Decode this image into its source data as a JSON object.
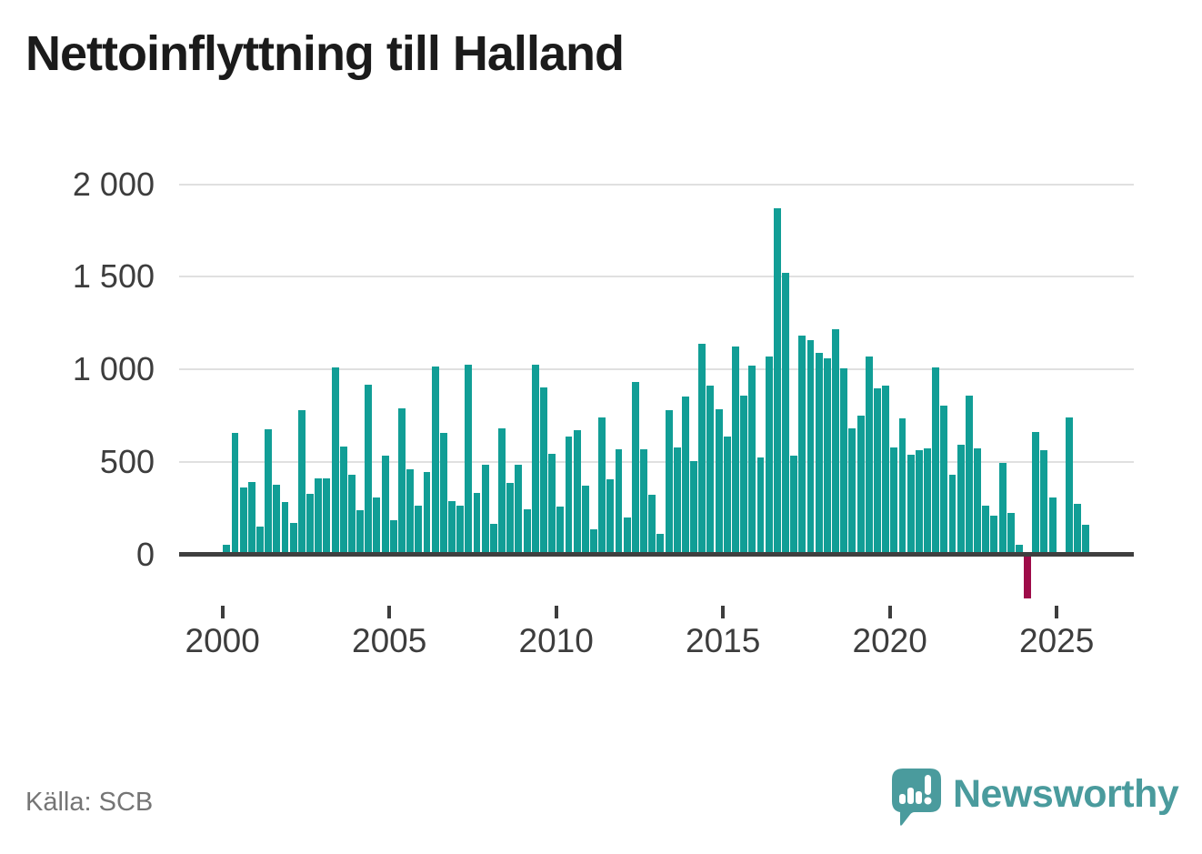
{
  "title": "Nettoinflyttning till Halland",
  "source": "Källa: SCB",
  "brand": {
    "name": "Newsworthy"
  },
  "colors": {
    "bar_positive": "#119e96",
    "bar_negative": "#9e0c49",
    "brand_teal": "#4a9b9d",
    "axis_text": "#3d3d3d",
    "gridline": "#e0e0e0",
    "zero_line": "#3f3f3f"
  },
  "chart_data": {
    "type": "bar",
    "title": "Nettoinflyttning till Halland",
    "x_unit": "quarter",
    "x_range": [
      "2000Q1",
      "2025Q4"
    ],
    "grid": "horizontal",
    "legend": "none",
    "ylim": [
      -280,
      2050
    ],
    "yticks": {
      "values": [
        0,
        500,
        1000,
        1500,
        2000
      ],
      "labels": [
        "0",
        "500",
        "1 000",
        "1 500",
        "2 000"
      ]
    },
    "xticks": {
      "values": [
        2000,
        2005,
        2010,
        2015,
        2020,
        2025
      ],
      "labels": [
        "2000",
        "2005",
        "2010",
        "2015",
        "2020",
        "2025"
      ]
    },
    "series": [
      {
        "year": 2000,
        "values": [
          50,
          655,
          360,
          390
        ]
      },
      {
        "year": 2001,
        "values": [
          148,
          678,
          375,
          285
        ]
      },
      {
        "year": 2002,
        "values": [
          168,
          780,
          325,
          410
        ]
      },
      {
        "year": 2003,
        "values": [
          412,
          1012,
          580,
          432
        ]
      },
      {
        "year": 2004,
        "values": [
          240,
          915,
          308,
          533
        ]
      },
      {
        "year": 2005,
        "values": [
          185,
          788,
          460,
          263
        ]
      },
      {
        "year": 2006,
        "values": [
          443,
          1013,
          655,
          286
        ]
      },
      {
        "year": 2007,
        "values": [
          263,
          1025,
          333,
          486
        ]
      },
      {
        "year": 2008,
        "values": [
          167,
          683,
          388,
          484
        ]
      },
      {
        "year": 2009,
        "values": [
          245,
          1025,
          900,
          545
        ]
      },
      {
        "year": 2010,
        "values": [
          258,
          635,
          672,
          373
        ]
      },
      {
        "year": 2011,
        "values": [
          135,
          742,
          406,
          570
        ]
      },
      {
        "year": 2012,
        "values": [
          200,
          930,
          570,
          323
        ]
      },
      {
        "year": 2013,
        "values": [
          110,
          778,
          575,
          852
        ]
      },
      {
        "year": 2014,
        "values": [
          504,
          1140,
          910,
          783
        ]
      },
      {
        "year": 2015,
        "values": [
          635,
          1125,
          857,
          1020
        ]
      },
      {
        "year": 2016,
        "values": [
          522,
          1068,
          1870,
          1519
        ]
      },
      {
        "year": 2017,
        "values": [
          532,
          1180,
          1159,
          1088
        ]
      },
      {
        "year": 2018,
        "values": [
          1058,
          1216,
          1006,
          680
        ]
      },
      {
        "year": 2019,
        "values": [
          751,
          1068,
          899,
          910
        ]
      },
      {
        "year": 2020,
        "values": [
          578,
          734,
          537,
          565
        ]
      },
      {
        "year": 2021,
        "values": [
          574,
          1010,
          805,
          432
        ]
      },
      {
        "year": 2022,
        "values": [
          591,
          857,
          571,
          263
        ]
      },
      {
        "year": 2023,
        "values": [
          208,
          492,
          222,
          52
        ]
      },
      {
        "year": 2024,
        "values": [
          -240,
          660,
          565,
          305
        ]
      },
      {
        "year": 2025,
        "values": [
          0,
          740,
          272,
          160
        ]
      }
    ]
  }
}
